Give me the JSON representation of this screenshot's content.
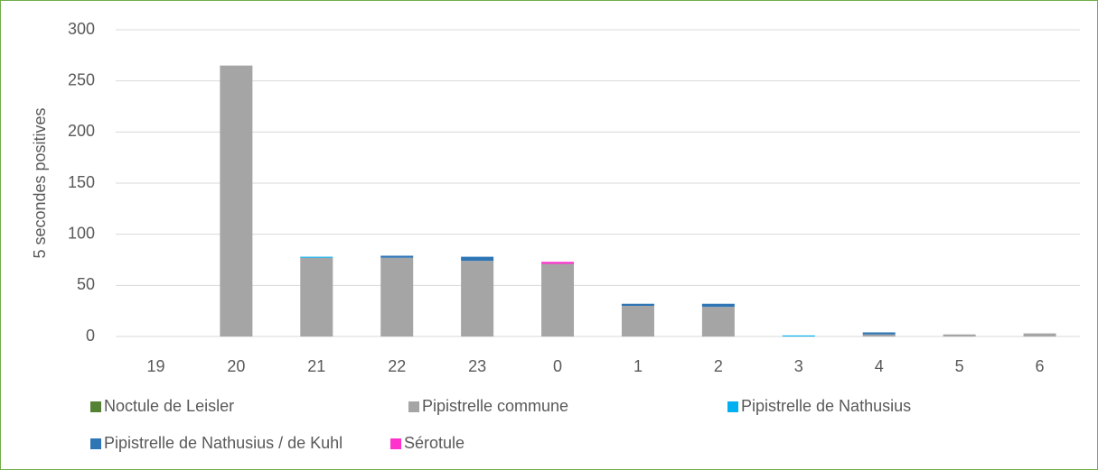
{
  "chart_data": {
    "type": "stacked_bar",
    "y_label": "5 secondes positives",
    "categories": [
      "19",
      "20",
      "21",
      "22",
      "23",
      "0",
      "1",
      "2",
      "3",
      "4",
      "5",
      "6"
    ],
    "series": [
      {
        "name": "Noctule de Leisler",
        "color": "#548235",
        "values": [
          0,
          0,
          0,
          0,
          0,
          0,
          0,
          0,
          0,
          0,
          0,
          0
        ]
      },
      {
        "name": "Pipistrelle commune",
        "color": "#a5a5a5",
        "values": [
          0,
          265,
          77,
          77,
          74,
          71,
          30,
          29,
          0,
          2,
          2,
          3
        ]
      },
      {
        "name": "Pipistrelle de Nathusius",
        "color": "#00b0f0",
        "values": [
          0,
          0,
          1,
          0,
          0,
          0,
          0,
          0,
          1,
          0,
          0,
          0
        ]
      },
      {
        "name": "Pipistrelle de Nathusius / de Kuhl",
        "color": "#2e75b6",
        "values": [
          0,
          0,
          0,
          2,
          4,
          0,
          2,
          3,
          0,
          2,
          0,
          0
        ]
      },
      {
        "name": "Sérotule",
        "color": "#ff33cc",
        "values": [
          0,
          0,
          0,
          0,
          0,
          2,
          0,
          0,
          0,
          0,
          0,
          0
        ]
      }
    ],
    "ylim": [
      0,
      300
    ],
    "yticks": [
      0,
      50,
      100,
      150,
      200,
      250,
      300
    ],
    "grid": true,
    "legend": "bottom"
  }
}
